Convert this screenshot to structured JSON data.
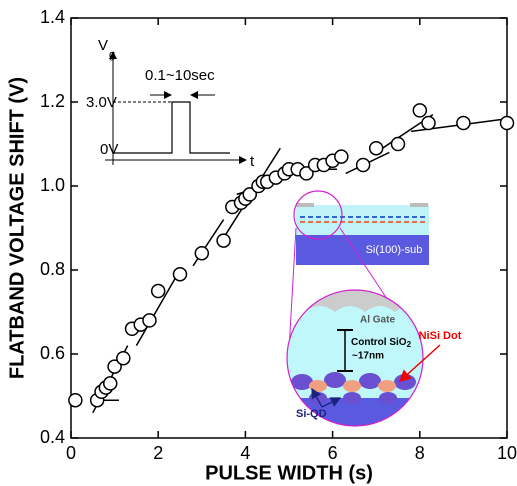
{
  "chart_data": {
    "type": "scatter",
    "xlabel": "PULSE WIDTH (s)",
    "ylabel": "FLATBAND VOLTAGE SHIFT (V)",
    "xlim": [
      0,
      10
    ],
    "xticks": [
      0,
      2,
      4,
      6,
      8,
      10
    ],
    "ylim": [
      0.4,
      1.4
    ],
    "yticks": [
      0.4,
      0.6,
      0.8,
      {
        "value": 1,
        "label": "1.0"
      },
      1.2,
      1.4
    ],
    "color": "#000000",
    "x": [
      0.1,
      0.6,
      0.7,
      0.8,
      0.9,
      1.0,
      1.2,
      1.4,
      1.6,
      1.8,
      2.0,
      2.5,
      3.0,
      3.5,
      3.7,
      3.9,
      4.0,
      4.1,
      4.3,
      4.4,
      4.5,
      4.7,
      4.9,
      5.0,
      5.2,
      5.4,
      5.6,
      5.8,
      6.0,
      6.2,
      6.7,
      7.0,
      7.5,
      8.0,
      8.2,
      9.0,
      10.0
    ],
    "values": [
      0.49,
      0.49,
      0.51,
      0.52,
      0.53,
      0.57,
      0.59,
      0.66,
      0.67,
      0.68,
      0.75,
      0.79,
      0.84,
      0.87,
      0.95,
      0.96,
      0.97,
      0.98,
      1.0,
      1.01,
      1.01,
      1.02,
      1.03,
      1.04,
      1.04,
      1.03,
      1.05,
      1.05,
      1.06,
      1.07,
      1.05,
      1.09,
      1.1,
      1.18,
      1.15,
      1.15,
      1.15
    ],
    "fit_lines": {
      "x": [
        0.5,
        1.3,
        null,
        0.6,
        1.1,
        null,
        1.5,
        2.5,
        null,
        2.8,
        3.5,
        null,
        3.4,
        4.8,
        null,
        3.8,
        5.0,
        null,
        5.0,
        6.1,
        null,
        6.3,
        7.3,
        null,
        7.0,
        8.3,
        null,
        7.8,
        10.0
      ],
      "values": [
        0.46,
        0.62,
        null,
        0.49,
        0.49,
        null,
        0.62,
        0.8,
        null,
        0.81,
        0.92,
        null,
        0.86,
        1.09,
        null,
        0.98,
        1.02,
        null,
        1.04,
        1.04,
        null,
        1.03,
        1.08,
        null,
        1.08,
        1.17,
        null,
        1.13,
        1.16
      ]
    },
    "inset_pulse": {
      "v": "V",
      "v_sub": "g",
      "width": "0.1~10sec",
      "high": "3.0V",
      "low": "0V",
      "t": "t"
    },
    "inset_device": {
      "substrate": "Si(100)-sub",
      "gate": "Al Gate",
      "dot": "NiSi Dot",
      "oxide": "Control SiO",
      "oxide_sub": "2",
      "thickness": "~17nm",
      "qd": "Si-QD"
    }
  }
}
